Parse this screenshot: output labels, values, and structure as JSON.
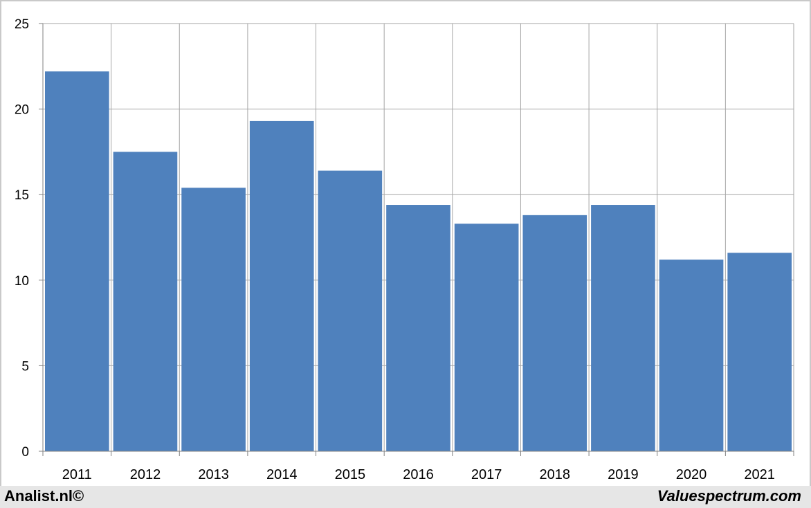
{
  "chart_data": {
    "type": "bar",
    "categories": [
      "2011",
      "2012",
      "2013",
      "2014",
      "2015",
      "2016",
      "2017",
      "2018",
      "2019",
      "2020",
      "2021"
    ],
    "values": [
      22.2,
      17.5,
      15.4,
      19.3,
      16.4,
      14.4,
      13.3,
      13.8,
      14.4,
      11.2,
      11.6
    ],
    "title": "",
    "xlabel": "",
    "ylabel": "",
    "ylim": [
      0,
      25
    ],
    "yticks": [
      0,
      5,
      10,
      15,
      20,
      25
    ],
    "grid": true,
    "bar_color": "#4f81bd",
    "grid_color": "#a6a6a6"
  },
  "footer": {
    "left_text": "Analist.nl©",
    "right_text": "Valuespectrum.com"
  }
}
